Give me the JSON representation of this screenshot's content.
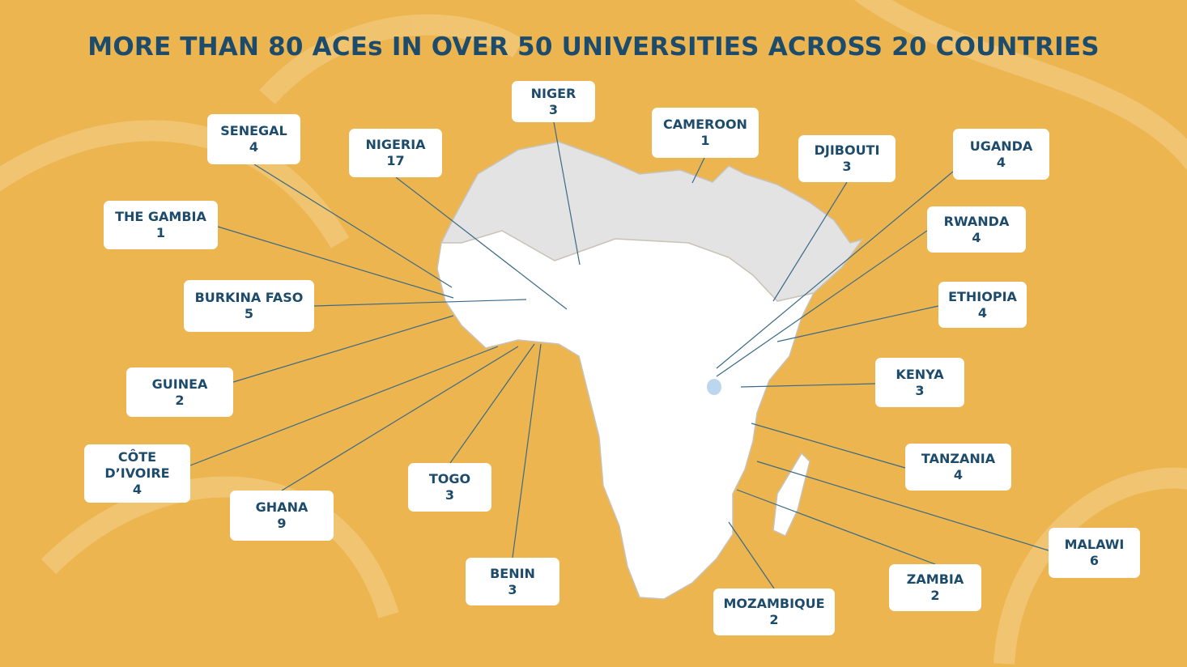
{
  "title": "MORE THAN 80 ACEs IN OVER 50 UNIVERSITIES ACROSS 20 COUNTRIES",
  "countries": [
    {
      "name": "NIGER",
      "count": 3
    },
    {
      "name": "CAMEROON",
      "count": 1
    },
    {
      "name": "SENEGAL",
      "count": 4
    },
    {
      "name": "NIGERIA",
      "count": 17
    },
    {
      "name": "DJIBOUTI",
      "count": 3
    },
    {
      "name": "UGANDA",
      "count": 4
    },
    {
      "name": "THE GAMBIA",
      "count": 1
    },
    {
      "name": "RWANDA",
      "count": 4
    },
    {
      "name": "BURKINA FASO",
      "count": 5
    },
    {
      "name": "ETHIOPIA",
      "count": 4
    },
    {
      "name": "GUINEA",
      "count": 2
    },
    {
      "name": "KENYA",
      "count": 3
    },
    {
      "name": "CÔTE D’IVOIRE",
      "count": 4
    },
    {
      "name": "TANZANIA",
      "count": 4
    },
    {
      "name": "TOGO",
      "count": 3
    },
    {
      "name": "GHANA",
      "count": 9
    },
    {
      "name": "MALAWI",
      "count": 6
    },
    {
      "name": "BENIN",
      "count": 3
    },
    {
      "name": "ZAMBIA",
      "count": 2
    },
    {
      "name": "MOZAMBIQUE",
      "count": 2
    }
  ]
}
